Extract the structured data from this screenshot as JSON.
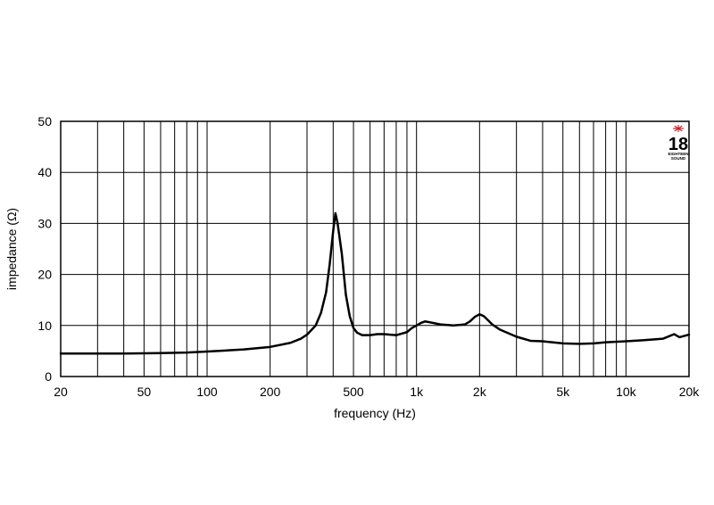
{
  "chart_data": {
    "type": "line",
    "xlabel": "frequency (Hz)",
    "ylabel": "impedance (Ω)",
    "x_scale": "log",
    "xlim": [
      20,
      20000
    ],
    "ylim": [
      0,
      50
    ],
    "grid": true,
    "x_ticks": [
      {
        "value": 20,
        "label": "20"
      },
      {
        "value": 50,
        "label": "50"
      },
      {
        "value": 100,
        "label": "100"
      },
      {
        "value": 200,
        "label": "200"
      },
      {
        "value": 500,
        "label": "500"
      },
      {
        "value": 1000,
        "label": "1k"
      },
      {
        "value": 2000,
        "label": "2k"
      },
      {
        "value": 5000,
        "label": "5k"
      },
      {
        "value": 10000,
        "label": "10k"
      },
      {
        "value": 20000,
        "label": "20k"
      }
    ],
    "y_ticks": [
      0,
      10,
      20,
      30,
      40,
      50
    ],
    "series": [
      {
        "color": "#000000",
        "points": [
          [
            20,
            4.5
          ],
          [
            30,
            4.5
          ],
          [
            40,
            4.5
          ],
          [
            60,
            4.6
          ],
          [
            80,
            4.7
          ],
          [
            100,
            4.9
          ],
          [
            150,
            5.3
          ],
          [
            200,
            5.8
          ],
          [
            250,
            6.6
          ],
          [
            280,
            7.4
          ],
          [
            300,
            8.2
          ],
          [
            330,
            10.0
          ],
          [
            350,
            12.5
          ],
          [
            370,
            16.5
          ],
          [
            385,
            22.0
          ],
          [
            400,
            28.5
          ],
          [
            410,
            32.0
          ],
          [
            420,
            30.0
          ],
          [
            440,
            24.0
          ],
          [
            460,
            16.0
          ],
          [
            480,
            11.8
          ],
          [
            500,
            9.5
          ],
          [
            520,
            8.6
          ],
          [
            550,
            8.1
          ],
          [
            600,
            8.1
          ],
          [
            650,
            8.3
          ],
          [
            700,
            8.3
          ],
          [
            750,
            8.2
          ],
          [
            800,
            8.1
          ],
          [
            900,
            8.7
          ],
          [
            950,
            9.5
          ],
          [
            1000,
            10.0
          ],
          [
            1050,
            10.5
          ],
          [
            1100,
            10.8
          ],
          [
            1200,
            10.5
          ],
          [
            1300,
            10.2
          ],
          [
            1500,
            10.0
          ],
          [
            1700,
            10.2
          ],
          [
            1800,
            10.8
          ],
          [
            1900,
            11.7
          ],
          [
            2000,
            12.2
          ],
          [
            2100,
            11.8
          ],
          [
            2300,
            10.2
          ],
          [
            2500,
            9.2
          ],
          [
            3000,
            7.8
          ],
          [
            3500,
            7.0
          ],
          [
            4000,
            6.9
          ],
          [
            5000,
            6.5
          ],
          [
            6000,
            6.4
          ],
          [
            7000,
            6.5
          ],
          [
            8000,
            6.7
          ],
          [
            10000,
            6.9
          ],
          [
            12000,
            7.1
          ],
          [
            15000,
            7.4
          ],
          [
            17000,
            8.3
          ],
          [
            18000,
            7.7
          ],
          [
            20000,
            8.2
          ]
        ]
      }
    ]
  },
  "logo": {
    "number": "18",
    "text_line1": "EIGHTEEN",
    "text_line2": "SOUND",
    "mark_color": "#d42027"
  }
}
